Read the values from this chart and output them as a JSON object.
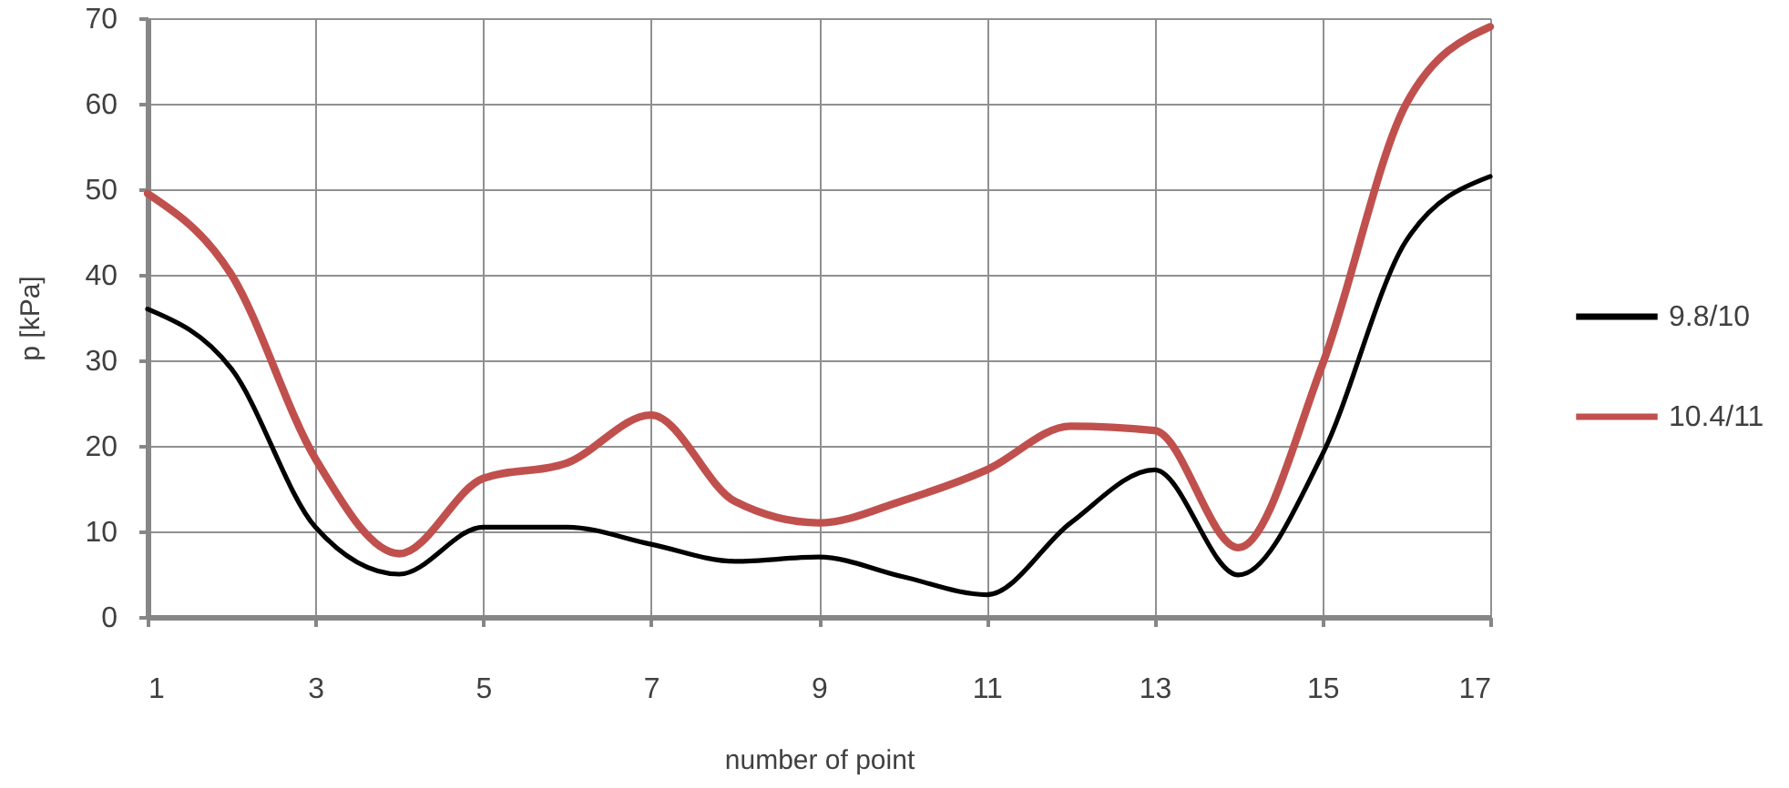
{
  "chart_data": {
    "type": "line",
    "xlabel": "number of point",
    "ylabel": "p [kPa]",
    "x": [
      1,
      2,
      3,
      4,
      5,
      6,
      7,
      8,
      9,
      10,
      11,
      12,
      13,
      14,
      15,
      16,
      17
    ],
    "xlim": [
      1,
      17
    ],
    "xticks": [
      1,
      3,
      5,
      7,
      9,
      11,
      13,
      15,
      17
    ],
    "ylim": [
      0,
      70
    ],
    "yticks": [
      0,
      10,
      20,
      30,
      40,
      50,
      60,
      70
    ],
    "grid": true,
    "legend": "right",
    "marker": "none",
    "line_style": "solid",
    "series": [
      {
        "name": "9.8/10",
        "color": "#000000",
        "values": [
          36,
          29,
          10.5,
          5,
          10.5,
          10.5,
          8.5,
          6.5,
          7,
          4.7,
          2.6,
          11,
          17.2,
          4.9,
          19,
          44,
          51.5
        ]
      },
      {
        "name": "10.4/11",
        "color": "#c0504d",
        "values": [
          49.5,
          40,
          18.5,
          7.4,
          16.2,
          18,
          23.6,
          13.5,
          11,
          13.6,
          17.2,
          22.3,
          21.8,
          8.1,
          29.5,
          60,
          69
        ]
      }
    ]
  }
}
